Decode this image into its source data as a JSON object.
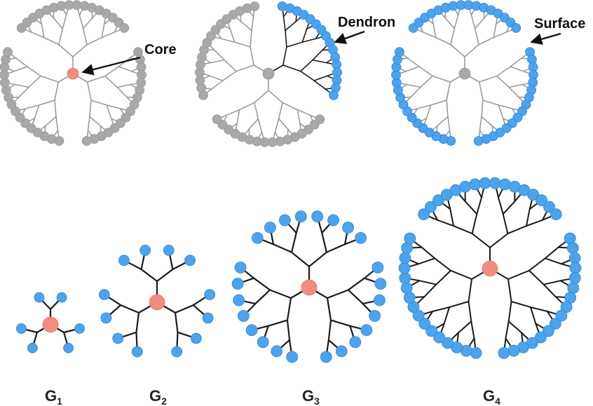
{
  "callouts": {
    "core": "Core",
    "dendron": "Dendron",
    "surface": "Surface"
  },
  "generations": [
    {
      "label": "G",
      "sub": "1"
    },
    {
      "label": "G",
      "sub": "2"
    },
    {
      "label": "G",
      "sub": "3"
    },
    {
      "label": "G",
      "sub": "4"
    }
  ],
  "colors": {
    "core": "#f08c80",
    "surface": "#4da3ec",
    "interior_branch": "#9b9b9b",
    "dendron_branch": "#1a1a1a",
    "grey_node": "#a9a9a9"
  }
}
